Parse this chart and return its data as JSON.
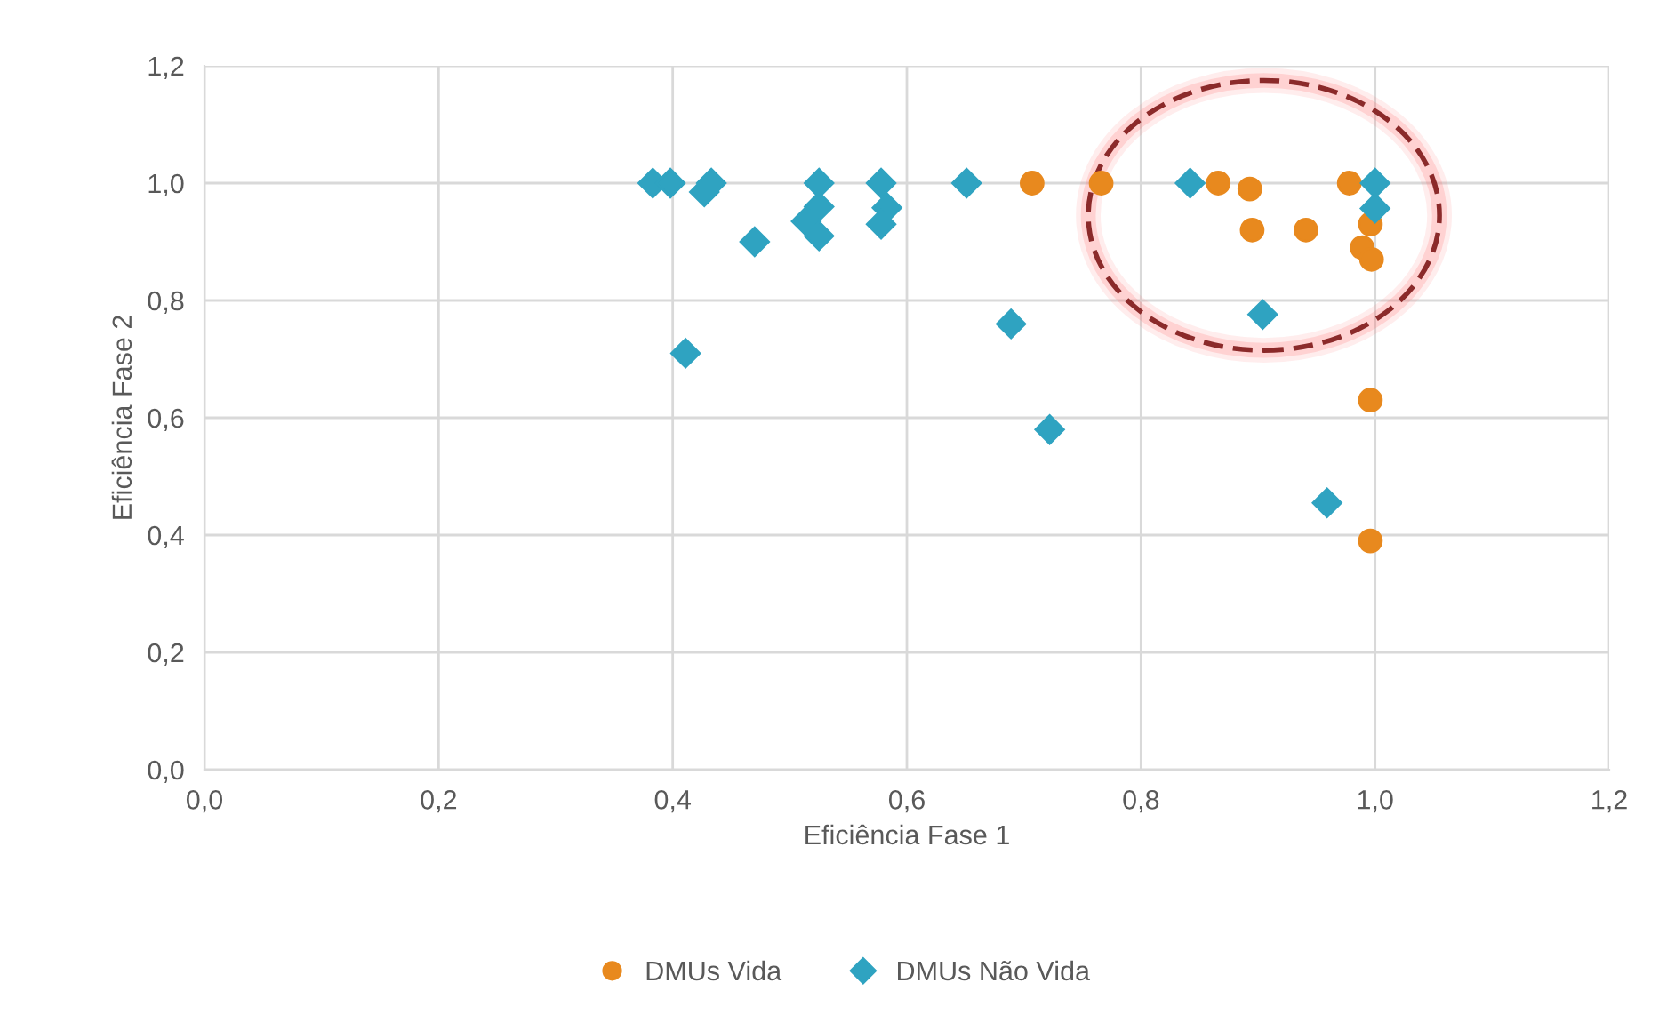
{
  "chart_data": {
    "type": "scatter",
    "xlabel": "Eficiência Fase 1",
    "ylabel": "Eficiência Fase 2",
    "xlim": [
      0,
      1.2
    ],
    "ylim": [
      0,
      1.2
    ],
    "xticks": [
      {
        "value": 0,
        "label": "0,0"
      },
      {
        "value": 0.2,
        "label": "0,2"
      },
      {
        "value": 0.4,
        "label": "0,4"
      },
      {
        "value": 0.6,
        "label": "0,6"
      },
      {
        "value": 0.8,
        "label": "0,8"
      },
      {
        "value": 1.0,
        "label": "1,0"
      },
      {
        "value": 1.2,
        "label": "1,2"
      }
    ],
    "yticks": [
      {
        "value": 0,
        "label": "0,0"
      },
      {
        "value": 0.2,
        "label": "0,2"
      },
      {
        "value": 0.4,
        "label": "0,4"
      },
      {
        "value": 0.6,
        "label": "0,6"
      },
      {
        "value": 0.8,
        "label": "0,8"
      },
      {
        "value": 1.0,
        "label": "1,0"
      },
      {
        "value": 1.2,
        "label": "1,2"
      }
    ],
    "grid": true,
    "legend": "bottom",
    "series": [
      {
        "name": "DMUs Vida",
        "color": "#e8891e",
        "marker": "circle",
        "x": [
          0.707,
          0.766,
          0.866,
          0.893,
          0.895,
          0.941,
          0.978,
          0.996,
          0.989,
          0.997,
          0.996,
          0.996
        ],
        "values": [
          1.0,
          1.0,
          1.0,
          0.99,
          0.92,
          0.92,
          1.0,
          0.93,
          0.89,
          0.87,
          0.63,
          0.39
        ]
      },
      {
        "name": "DMUs Não Vida",
        "color": "#2fa3c1",
        "marker": "diamond",
        "x": [
          0.383,
          0.398,
          0.433,
          0.427,
          0.525,
          0.525,
          0.514,
          0.525,
          0.578,
          0.583,
          0.578,
          0.47,
          0.651,
          0.411,
          0.689,
          0.722,
          0.842,
          1.0,
          1.0,
          0.904,
          0.959
        ],
        "values": [
          1.0,
          1.0,
          1.0,
          0.985,
          1.0,
          0.96,
          0.935,
          0.91,
          1.0,
          0.958,
          0.93,
          0.9,
          1.0,
          0.71,
          0.76,
          0.58,
          1.0,
          1.0,
          0.957,
          0.776,
          0.455
        ]
      }
    ]
  }
}
